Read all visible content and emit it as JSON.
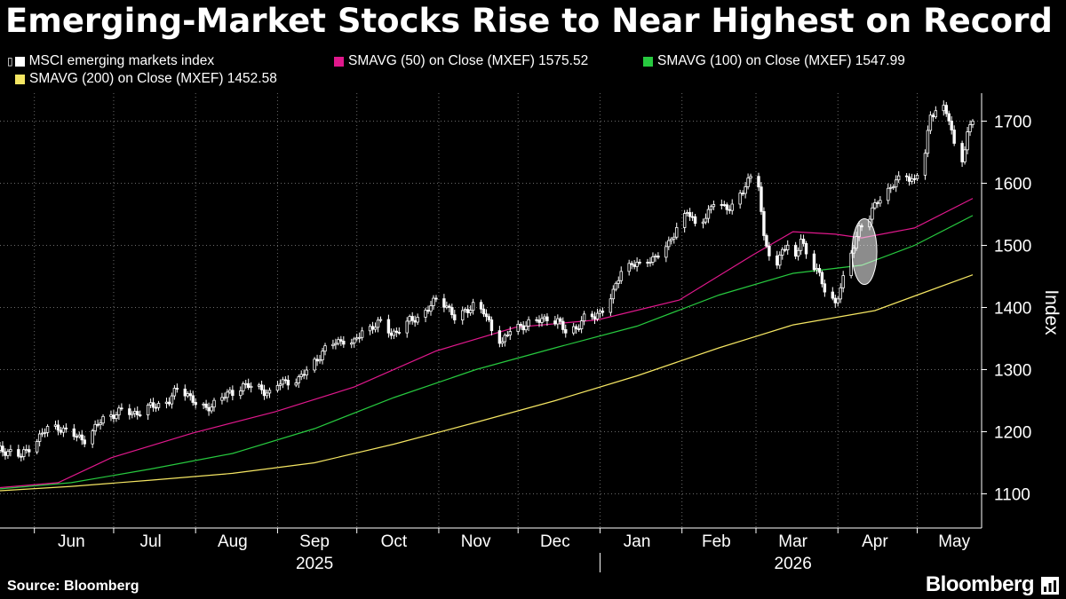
{
  "title": "Emerging-Market Stocks Rise to Near Highest on Record",
  "legend": [
    {
      "label": "MSCI emerging markets index",
      "color": "#ffffff"
    },
    {
      "label": "SMAVG (50)  on Close (MXEF) 1575.52",
      "color": "#e0188c"
    },
    {
      "label": "SMAVG (100)  on Close (MXEF) 1547.99",
      "color": "#27c93f"
    },
    {
      "label": "SMAVG (200)  on Close (MXEF) 1452.58",
      "color": "#f5e663"
    }
  ],
  "footer": {
    "source": "Source: Bloomberg",
    "brand": "Bloomberg"
  },
  "chart_data": {
    "type": "line",
    "title": "Emerging-Market Stocks Rise to Near Highest on Record",
    "ylabel": "Index",
    "ylim": [
      1045,
      1745
    ],
    "yticks": [
      1100,
      1200,
      1300,
      1400,
      1500,
      1600,
      1700
    ],
    "ytick_labels": [
      "1100",
      "1200",
      "1300",
      "1400",
      "1500",
      "1600",
      "1700"
    ],
    "x_start": "2025-05-19",
    "x_end": "2026-05-22",
    "month_labels": [
      {
        "date": "2025-06-15",
        "label": "Jun"
      },
      {
        "date": "2025-07-15",
        "label": "Jul"
      },
      {
        "date": "2025-08-15",
        "label": "Aug"
      },
      {
        "date": "2025-09-15",
        "label": "Sep"
      },
      {
        "date": "2025-10-15",
        "label": "Oct"
      },
      {
        "date": "2025-11-15",
        "label": "Nov"
      },
      {
        "date": "2025-12-15",
        "label": "Dec"
      },
      {
        "date": "2026-01-15",
        "label": "Jan"
      },
      {
        "date": "2026-02-14",
        "label": "Feb"
      },
      {
        "date": "2026-03-15",
        "label": "Mar"
      },
      {
        "date": "2026-04-15",
        "label": "Apr"
      },
      {
        "date": "2026-05-15",
        "label": "May"
      }
    ],
    "year_labels": [
      {
        "date": "2025-09-15",
        "label": "2025"
      },
      {
        "date": "2026-03-15",
        "label": "2026"
      }
    ],
    "grid": true,
    "legend_position": "top-left",
    "series": [
      {
        "name": "MSCI emerging markets index",
        "color": "#ffffff",
        "points": [
          [
            "2025-05-19",
            1170
          ],
          [
            "2025-05-23",
            1168
          ],
          [
            "2025-05-27",
            1160
          ],
          [
            "2025-05-30",
            1175
          ],
          [
            "2025-06-03",
            1192
          ],
          [
            "2025-06-06",
            1205
          ],
          [
            "2025-06-10",
            1208
          ],
          [
            "2025-06-13",
            1200
          ],
          [
            "2025-06-17",
            1192
          ],
          [
            "2025-06-20",
            1188
          ],
          [
            "2025-06-24",
            1205
          ],
          [
            "2025-06-27",
            1222
          ],
          [
            "2025-07-01",
            1228
          ],
          [
            "2025-07-04",
            1233
          ],
          [
            "2025-07-08",
            1230
          ],
          [
            "2025-07-11",
            1232
          ],
          [
            "2025-07-15",
            1240
          ],
          [
            "2025-07-18",
            1244
          ],
          [
            "2025-07-22",
            1250
          ],
          [
            "2025-07-25",
            1268
          ],
          [
            "2025-07-29",
            1262
          ],
          [
            "2025-08-01",
            1245
          ],
          [
            "2025-08-05",
            1235
          ],
          [
            "2025-08-08",
            1248
          ],
          [
            "2025-08-12",
            1258
          ],
          [
            "2025-08-15",
            1262
          ],
          [
            "2025-08-19",
            1276
          ],
          [
            "2025-08-22",
            1272
          ],
          [
            "2025-08-26",
            1268
          ],
          [
            "2025-08-29",
            1262
          ],
          [
            "2025-09-02",
            1278
          ],
          [
            "2025-09-05",
            1282
          ],
          [
            "2025-09-09",
            1284
          ],
          [
            "2025-09-12",
            1298
          ],
          [
            "2025-09-16",
            1318
          ],
          [
            "2025-09-19",
            1332
          ],
          [
            "2025-09-23",
            1344
          ],
          [
            "2025-09-26",
            1348
          ],
          [
            "2025-09-30",
            1342
          ],
          [
            "2025-10-03",
            1362
          ],
          [
            "2025-10-07",
            1370
          ],
          [
            "2025-10-10",
            1375
          ],
          [
            "2025-10-14",
            1358
          ],
          [
            "2025-10-17",
            1364
          ],
          [
            "2025-10-21",
            1378
          ],
          [
            "2025-10-24",
            1384
          ],
          [
            "2025-10-28",
            1398
          ],
          [
            "2025-10-31",
            1412
          ],
          [
            "2025-11-04",
            1405
          ],
          [
            "2025-11-07",
            1382
          ],
          [
            "2025-11-11",
            1392
          ],
          [
            "2025-11-14",
            1406
          ],
          [
            "2025-11-18",
            1392
          ],
          [
            "2025-11-21",
            1365
          ],
          [
            "2025-11-25",
            1345
          ],
          [
            "2025-11-28",
            1362
          ],
          [
            "2025-12-02",
            1370
          ],
          [
            "2025-12-05",
            1375
          ],
          [
            "2025-12-09",
            1378
          ],
          [
            "2025-12-12",
            1384
          ],
          [
            "2025-12-16",
            1378
          ],
          [
            "2025-12-19",
            1360
          ],
          [
            "2025-12-23",
            1368
          ],
          [
            "2025-12-26",
            1382
          ],
          [
            "2025-12-30",
            1385
          ],
          [
            "2026-01-02",
            1398
          ],
          [
            "2026-01-06",
            1422
          ],
          [
            "2026-01-09",
            1460
          ],
          [
            "2026-01-13",
            1472
          ],
          [
            "2026-01-16",
            1466
          ],
          [
            "2026-01-20",
            1478
          ],
          [
            "2026-01-23",
            1485
          ],
          [
            "2026-01-27",
            1500
          ],
          [
            "2026-01-30",
            1530
          ],
          [
            "2026-02-03",
            1555
          ],
          [
            "2026-02-06",
            1532
          ],
          [
            "2026-02-10",
            1548
          ],
          [
            "2026-02-13",
            1568
          ],
          [
            "2026-02-17",
            1560
          ],
          [
            "2026-02-20",
            1565
          ],
          [
            "2026-02-24",
            1585
          ],
          [
            "2026-02-27",
            1612
          ],
          [
            "2026-03-02",
            1602
          ],
          [
            "2026-03-04",
            1510
          ],
          [
            "2026-03-06",
            1485
          ],
          [
            "2026-03-09",
            1465
          ],
          [
            "2026-03-11",
            1500
          ],
          [
            "2026-03-13",
            1495
          ],
          [
            "2026-03-16",
            1478
          ],
          [
            "2026-03-18",
            1510
          ],
          [
            "2026-03-20",
            1490
          ],
          [
            "2026-03-24",
            1460
          ],
          [
            "2026-03-27",
            1428
          ],
          [
            "2026-03-31",
            1408
          ],
          [
            "2026-04-02",
            1432
          ],
          [
            "2026-04-04",
            1455
          ],
          [
            "2026-04-07",
            1500
          ],
          [
            "2026-04-09",
            1530
          ],
          [
            "2026-04-13",
            1545
          ],
          [
            "2026-04-16",
            1572
          ],
          [
            "2026-04-20",
            1590
          ],
          [
            "2026-04-23",
            1602
          ],
          [
            "2026-04-27",
            1612
          ],
          [
            "2026-04-30",
            1605
          ],
          [
            "2026-05-04",
            1648
          ],
          [
            "2026-05-06",
            1708
          ],
          [
            "2026-05-08",
            1720
          ],
          [
            "2026-05-11",
            1722
          ],
          [
            "2026-05-13",
            1702
          ],
          [
            "2026-05-15",
            1660
          ],
          [
            "2026-05-18",
            1640
          ],
          [
            "2026-05-20",
            1680
          ],
          [
            "2026-05-22",
            1702
          ]
        ]
      },
      {
        "name": "SMAVG (50)  on Close (MXEF) 1575.52",
        "color": "#e0188c",
        "points": [
          [
            "2025-05-19",
            1110
          ],
          [
            "2025-06-10",
            1118
          ],
          [
            "2025-06-30",
            1158
          ],
          [
            "2025-07-31",
            1198
          ],
          [
            "2025-08-31",
            1232
          ],
          [
            "2025-09-30",
            1272
          ],
          [
            "2025-10-31",
            1330
          ],
          [
            "2025-11-30",
            1368
          ],
          [
            "2025-12-31",
            1380
          ],
          [
            "2026-01-31",
            1412
          ],
          [
            "2026-02-28",
            1485
          ],
          [
            "2026-03-15",
            1522
          ],
          [
            "2026-03-31",
            1518
          ],
          [
            "2026-04-10",
            1512
          ],
          [
            "2026-04-30",
            1528
          ],
          [
            "2026-05-22",
            1575.52
          ]
        ]
      },
      {
        "name": "SMAVG (100)  on Close (MXEF) 1547.99",
        "color": "#27c93f",
        "points": [
          [
            "2025-05-19",
            1108
          ],
          [
            "2025-06-15",
            1118
          ],
          [
            "2025-07-15",
            1140
          ],
          [
            "2025-08-15",
            1165
          ],
          [
            "2025-09-15",
            1205
          ],
          [
            "2025-10-15",
            1255
          ],
          [
            "2025-11-15",
            1300
          ],
          [
            "2025-12-15",
            1335
          ],
          [
            "2026-01-15",
            1370
          ],
          [
            "2026-02-15",
            1420
          ],
          [
            "2026-03-15",
            1455
          ],
          [
            "2026-04-10",
            1468
          ],
          [
            "2026-04-30",
            1500
          ],
          [
            "2026-05-22",
            1547.99
          ]
        ]
      },
      {
        "name": "SMAVG (200)  on Close (MXEF) 1452.58",
        "color": "#f5e663",
        "points": [
          [
            "2025-05-19",
            1105
          ],
          [
            "2025-06-15",
            1112
          ],
          [
            "2025-07-15",
            1122
          ],
          [
            "2025-08-15",
            1133
          ],
          [
            "2025-09-15",
            1150
          ],
          [
            "2025-10-15",
            1180
          ],
          [
            "2025-11-15",
            1215
          ],
          [
            "2025-12-15",
            1250
          ],
          [
            "2026-01-15",
            1290
          ],
          [
            "2026-02-15",
            1335
          ],
          [
            "2026-03-15",
            1372
          ],
          [
            "2026-04-15",
            1395
          ],
          [
            "2026-05-01",
            1420
          ],
          [
            "2026-05-22",
            1452.58
          ]
        ]
      }
    ],
    "annotation": {
      "type": "ellipse-highlight",
      "date": "2026-04-07",
      "value": 1490
    }
  }
}
